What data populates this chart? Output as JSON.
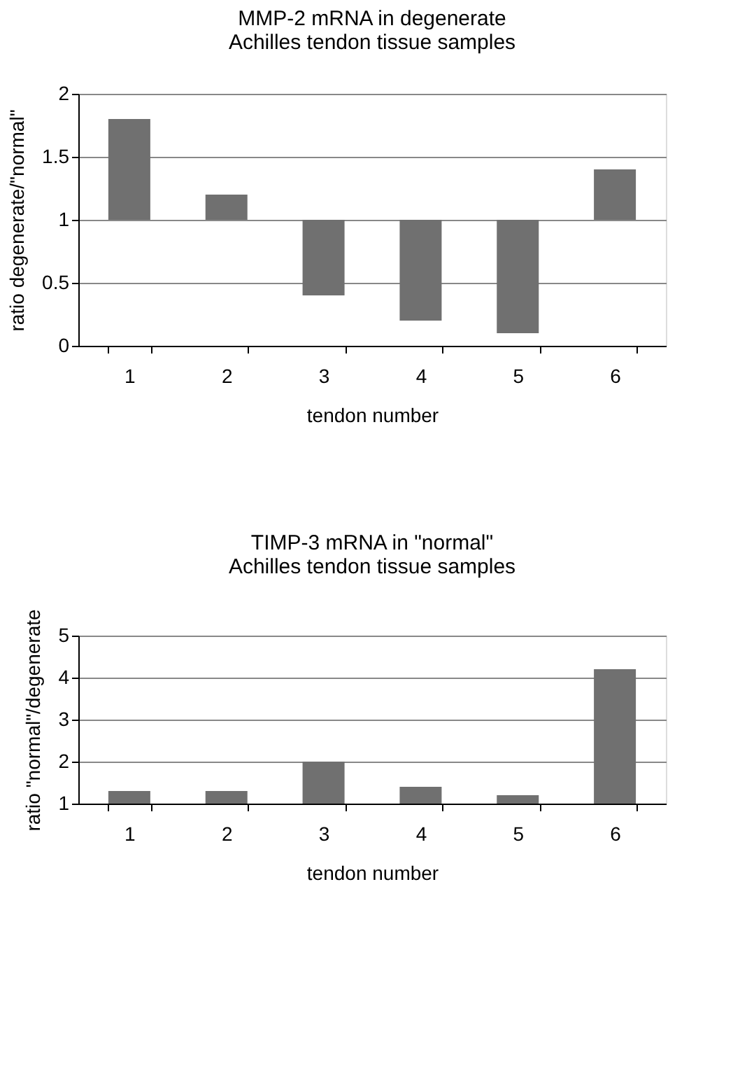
{
  "chart_data": [
    {
      "type": "bar",
      "title": "MMP-2 mRNA in degenerate\nAchilles tendon tissue samples",
      "xlabel": "tendon number",
      "ylabel": "ratio degenerate/\"normal\"",
      "categories": [
        "1",
        "2",
        "3",
        "4",
        "5",
        "6"
      ],
      "base": [
        1,
        1,
        1,
        1,
        1,
        1
      ],
      "values": [
        0.8,
        0.2,
        -0.6,
        -0.8,
        -0.9,
        0.4
      ],
      "color": "#707070",
      "ylim": [
        0,
        2
      ],
      "yticks": [
        0,
        0.5,
        1,
        1.5,
        2
      ],
      "grid": "y"
    },
    {
      "type": "bar",
      "title": "TIMP-3 mRNA in \"normal\"\nAchilles tendon tissue samples",
      "xlabel": "tendon number",
      "ylabel": "ratio \"normal\"/degenerate",
      "categories": [
        "1",
        "2",
        "3",
        "4",
        "5",
        "6"
      ],
      "base": [
        1,
        1,
        1,
        1,
        1,
        1
      ],
      "values": [
        0.3,
        0.3,
        1.0,
        0.4,
        0.2,
        3.2
      ],
      "color": "#707070",
      "ylim": [
        1,
        5
      ],
      "yticks": [
        1,
        2,
        3,
        4,
        5
      ],
      "grid": "y"
    }
  ]
}
